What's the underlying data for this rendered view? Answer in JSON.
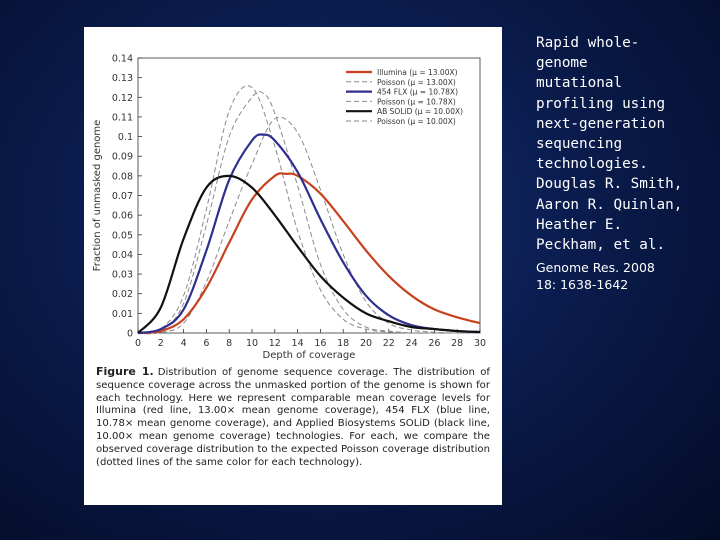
{
  "side_text": {
    "title_lines": [
      "Rapid whole-",
      "genome",
      "mutational",
      "profiling using",
      "next-generation",
      "sequencing",
      "technologies.",
      "Douglas R. Smith,",
      "Aaron R. Quinlan,",
      "Heather E.",
      "Peckham, et al."
    ],
    "reference_lines": [
      "Genome Res. 2008",
      "18: 1638-1642"
    ]
  },
  "caption": {
    "label": "Figure 1.",
    "text": "Distribution of genome sequence coverage. The distribution of sequence coverage across the unmasked portion of the genome is shown for each technology. Here we represent comparable mean coverage levels for Illumina (red line, 13.00× mean genome coverage), 454 FLX (blue line, 10.78× mean genome coverage), and Applied Biosystems SOLiD (black line, 10.00× mean genome coverage) technologies. For each, we compare the observed coverage distribution to the expected Poisson coverage distribution (dotted lines of the same color for each technology)."
  },
  "chart_data": {
    "type": "line",
    "xlabel": "Depth of coverage",
    "ylabel": "Fraction of unmasked genome",
    "xlim": [
      0,
      30
    ],
    "ylim": [
      0,
      0.14
    ],
    "xticks": [
      0,
      2,
      4,
      6,
      8,
      10,
      12,
      14,
      16,
      18,
      20,
      22,
      24,
      26,
      28,
      30
    ],
    "yticks": [
      0,
      0.01,
      0.02,
      0.03,
      0.04,
      0.05,
      0.06,
      0.07,
      0.08,
      0.09,
      0.1,
      0.11,
      0.12,
      0.13,
      0.14
    ],
    "ytick_labels": [
      "0",
      "0.01",
      "0.02",
      "0.03",
      "0.04",
      "0.05",
      "0.06",
      "0.07",
      "0.08",
      "0.09",
      "0.1",
      "0.11",
      "0.12",
      "0.13",
      "0.14"
    ],
    "grid": false,
    "legend_position": "top-right",
    "series": [
      {
        "name": "Illumina (μ = 13.00X)",
        "color": "#c8411e",
        "style": "solid",
        "x": [
          0,
          2,
          4,
          6,
          8,
          10,
          12,
          13,
          14,
          16,
          18,
          20,
          22,
          24,
          26,
          28,
          30
        ],
        "y": [
          0,
          0.001,
          0.007,
          0.023,
          0.046,
          0.068,
          0.08,
          0.081,
          0.08,
          0.071,
          0.057,
          0.042,
          0.029,
          0.019,
          0.012,
          0.008,
          0.005
        ]
      },
      {
        "name": "Poisson (μ = 13.00X)",
        "color": "#8a8a8a",
        "style": "dashed",
        "x": [
          0,
          2,
          4,
          6,
          8,
          10,
          12,
          14,
          16,
          18,
          20,
          22,
          24,
          26,
          28,
          30
        ],
        "y": [
          0,
          0.0002,
          0.005,
          0.026,
          0.057,
          0.086,
          0.109,
          0.102,
          0.073,
          0.04,
          0.016,
          0.005,
          0.0015,
          0.0004,
          0,
          0
        ]
      },
      {
        "name": "454 FLX (μ = 10.78X)",
        "color": "#2e2f8f",
        "style": "solid",
        "x": [
          0,
          2,
          4,
          6,
          8,
          10,
          11,
          12,
          14,
          16,
          18,
          20,
          22,
          24,
          26,
          28,
          30
        ],
        "y": [
          0,
          0.002,
          0.012,
          0.042,
          0.078,
          0.098,
          0.101,
          0.098,
          0.082,
          0.058,
          0.036,
          0.019,
          0.009,
          0.004,
          0.002,
          0.001,
          0.0005
        ]
      },
      {
        "name": "Poisson (μ = 10.78X)",
        "color": "#8a8a8a",
        "style": "dashed",
        "x": [
          0,
          2,
          4,
          6,
          8,
          10,
          11,
          12,
          14,
          16,
          18,
          20,
          22,
          24,
          26,
          30
        ],
        "y": [
          0,
          0.001,
          0.015,
          0.055,
          0.1,
          0.12,
          0.122,
          0.112,
          0.075,
          0.035,
          0.012,
          0.003,
          0.001,
          0,
          0,
          0
        ]
      },
      {
        "name": "AB SOLiD (μ = 10.00X)",
        "color": "#111111",
        "style": "solid",
        "x": [
          0,
          2,
          4,
          6,
          8,
          10,
          12,
          14,
          16,
          18,
          20,
          22,
          24,
          26,
          28,
          30
        ],
        "y": [
          0,
          0.013,
          0.048,
          0.074,
          0.08,
          0.074,
          0.06,
          0.044,
          0.029,
          0.018,
          0.01,
          0.006,
          0.003,
          0.002,
          0.001,
          0.0005
        ]
      },
      {
        "name": "Poisson (μ = 10.00X)",
        "color": "#8a8a8a",
        "style": "dashed",
        "x": [
          0,
          2,
          4,
          6,
          8,
          10,
          12,
          14,
          16,
          18,
          20,
          22,
          24,
          26,
          30
        ],
        "y": [
          0,
          0.002,
          0.019,
          0.063,
          0.113,
          0.125,
          0.095,
          0.052,
          0.022,
          0.007,
          0.002,
          0.0005,
          0,
          0,
          0
        ]
      }
    ]
  }
}
